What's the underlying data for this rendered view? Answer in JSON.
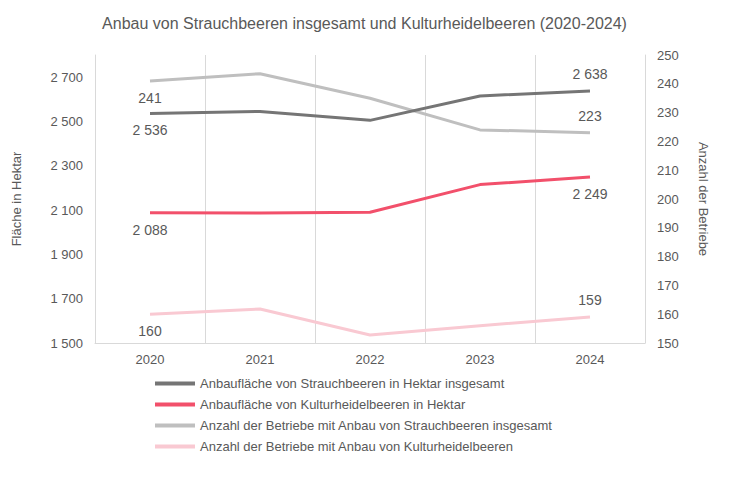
{
  "chart_data": {
    "type": "line",
    "title": "Anbau von Strauchbeeren insgesamt und Kulturheidelbeeren (2020-2024)",
    "categories": [
      "2020",
      "2021",
      "2022",
      "2023",
      "2024"
    ],
    "ylabel": "Fläche in Hektar",
    "y2label": "Anzahl der Betriebe",
    "ylim": [
      1500,
      2800
    ],
    "yticks": [
      {
        "value": 1500,
        "label": "1 500"
      },
      {
        "value": 1700,
        "label": "1 700"
      },
      {
        "value": 1900,
        "label": "1 900"
      },
      {
        "value": 2100,
        "label": "2 100"
      },
      {
        "value": 2300,
        "label": "2 300"
      },
      {
        "value": 2500,
        "label": "2 500"
      },
      {
        "value": 2700,
        "label": "2 700"
      }
    ],
    "y2lim": [
      150,
      250
    ],
    "y2ticks": [
      150,
      160,
      170,
      180,
      190,
      200,
      210,
      220,
      230,
      240,
      250
    ],
    "grid": "x",
    "legend": "bottom",
    "data_labels": true,
    "series": [
      {
        "name": "Anbaufläche von Strauchbeeren in Hektar insgesamt",
        "color": "#757575",
        "values": [
          2536,
          2545,
          2505,
          2615,
          2638
        ],
        "value_labels": [
          "2 536",
          null,
          null,
          null,
          "2 638"
        ]
      },
      {
        "name": "Anbaufläche von Kulturheidelbeeren in Hektar",
        "color": "#f2506b",
        "values": [
          2088,
          2087,
          2090,
          2215,
          2249
        ],
        "value_labels": [
          "2 088",
          null,
          null,
          null,
          "2 249"
        ]
      },
      {
        "name": "Anzahl der Betriebe mit Anbau von Strauchbeeren insgesamt",
        "color": "#bfbfbf",
        "axis": "y2",
        "values": [
          241,
          243.5,
          235,
          224,
          223
        ],
        "value_labels": [
          "241",
          null,
          null,
          null,
          "223"
        ]
      },
      {
        "name": "Anzahl der Betriebe mit Anbau von Kulturheidelbeeren",
        "color": "#f9c9d2",
        "axis": "y2",
        "values": [
          160,
          161.8,
          152.8,
          156,
          159
        ],
        "value_labels": [
          "160",
          null,
          null,
          null,
          "159"
        ]
      }
    ]
  }
}
